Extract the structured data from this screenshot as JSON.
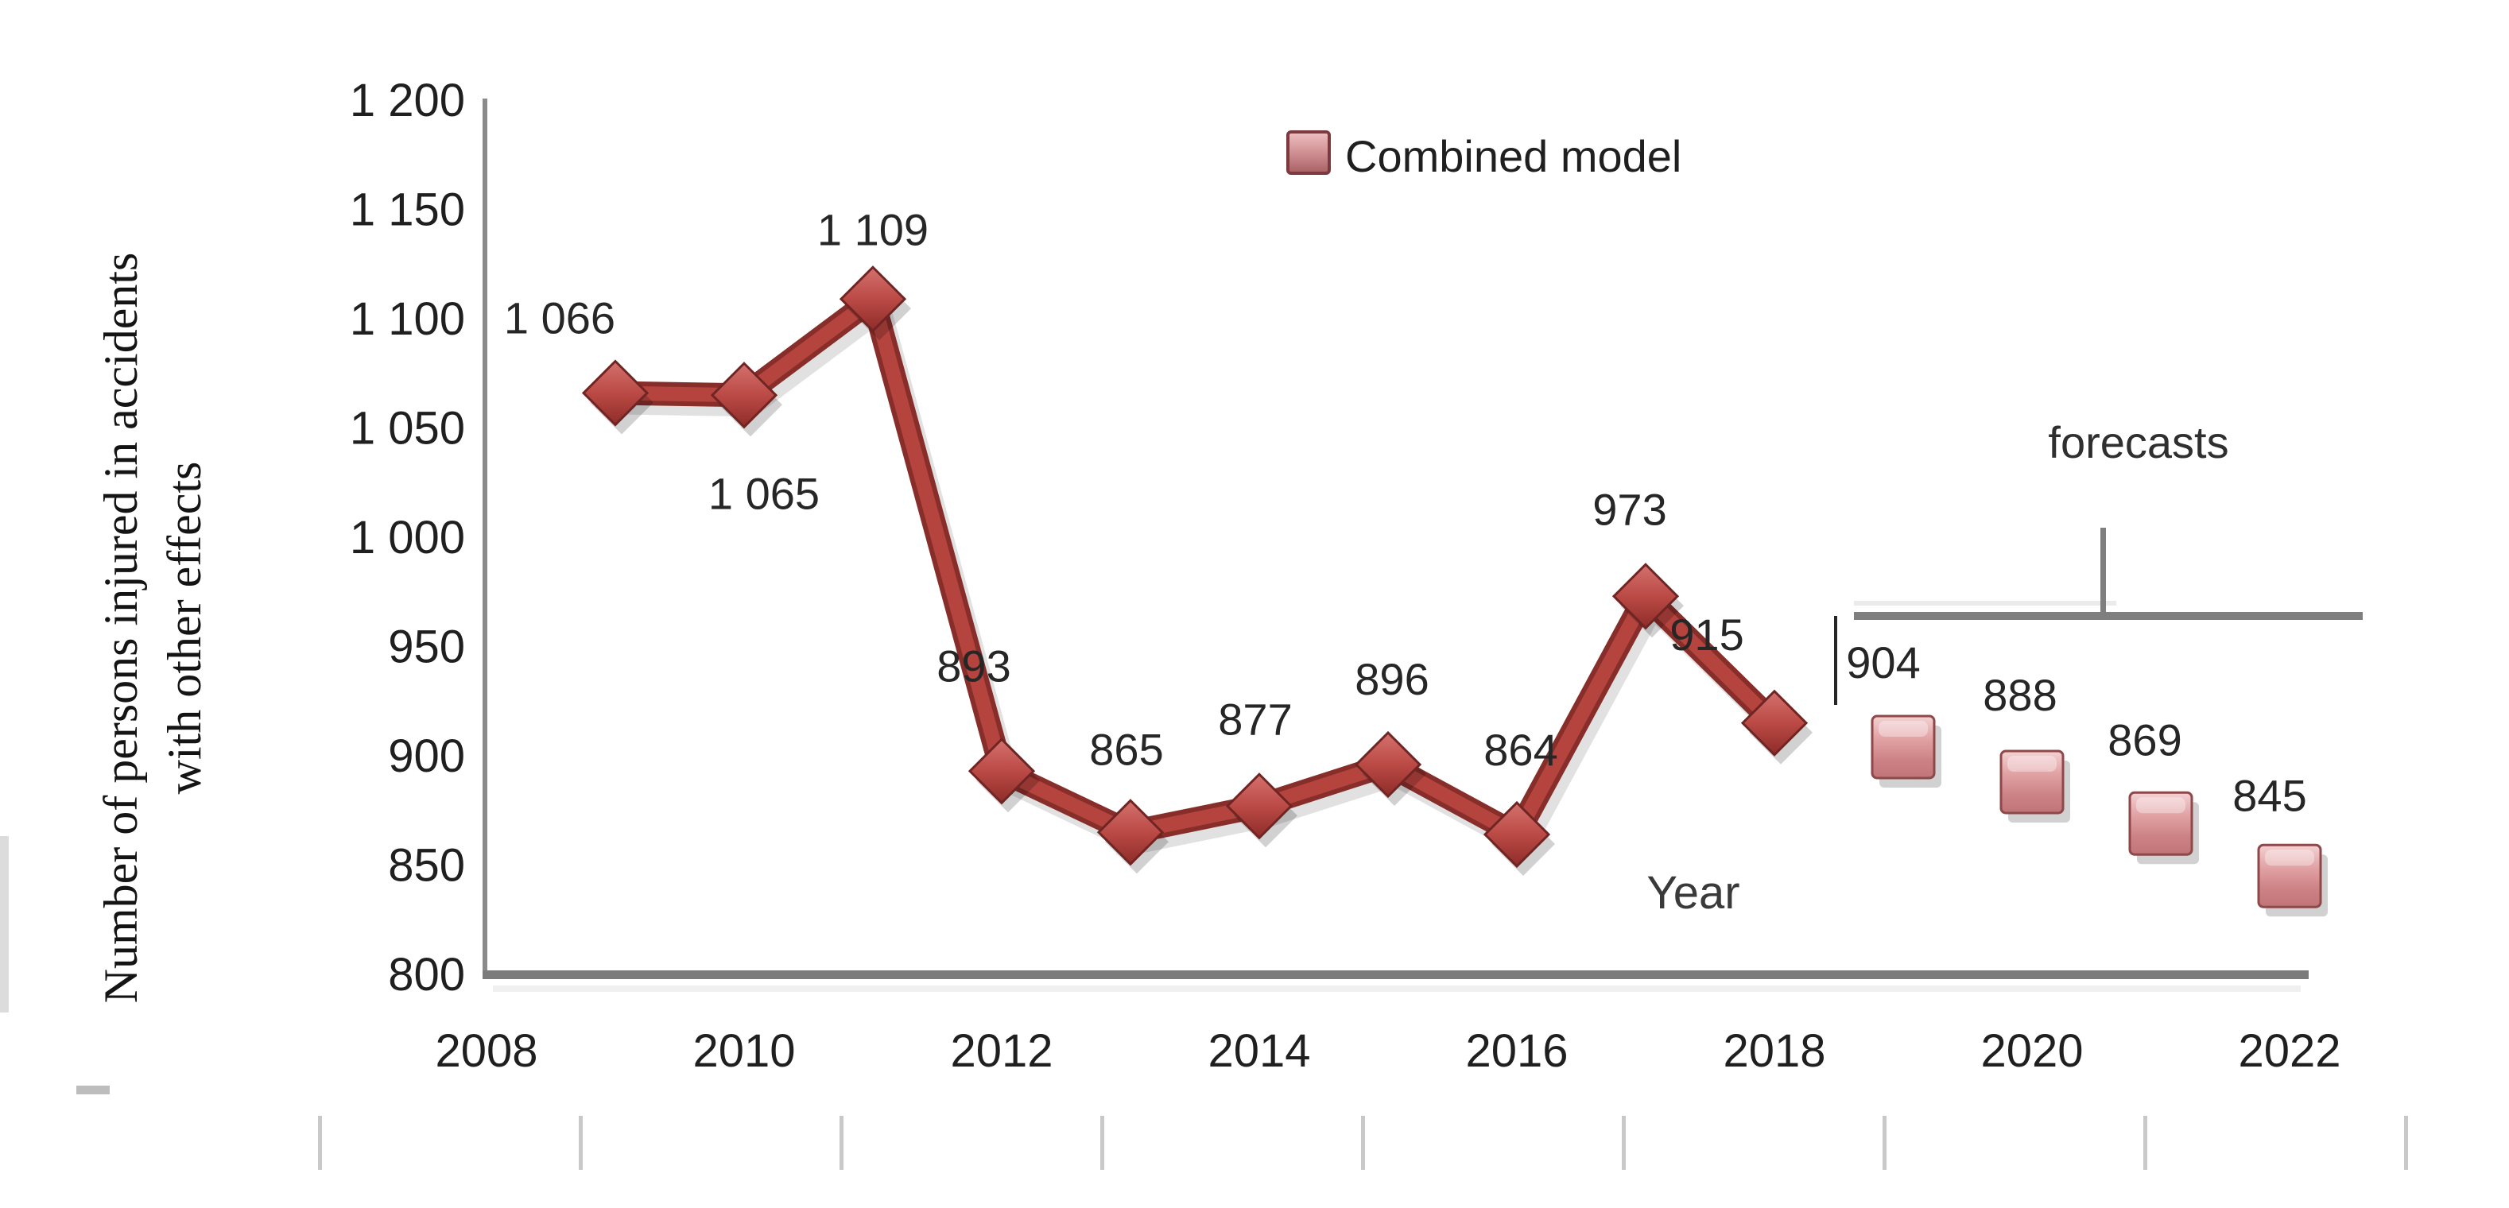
{
  "page": {
    "background": "#ffffff"
  },
  "chart_data": {
    "type": "line",
    "title": "",
    "legend_label": "Combined model",
    "legend_position": "top-center",
    "grid": false,
    "x_axis": {
      "label": "Year",
      "ticks": [
        "2008",
        "2010",
        "2012",
        "2014",
        "2016",
        "2018",
        "2020",
        "2022"
      ],
      "range": [
        2008,
        2022
      ]
    },
    "y_axis": {
      "title_line1": "Number of persons injured in accidents",
      "title_line2": "with other effects",
      "range": [
        800,
        1200
      ],
      "ticks": [
        {
          "value": 1200,
          "label": "1 200"
        },
        {
          "value": 1150,
          "label": "1 150"
        },
        {
          "value": 1100,
          "label": "1 100"
        },
        {
          "value": 1050,
          "label": "1 050"
        },
        {
          "value": 1000,
          "label": "1 000"
        },
        {
          "value": 950,
          "label": "950"
        },
        {
          "value": 900,
          "label": "900"
        },
        {
          "value": 850,
          "label": "850"
        },
        {
          "value": 800,
          "label": "800"
        }
      ]
    },
    "annotations": {
      "forecasts_label": "forecasts"
    },
    "series": [
      {
        "name": "Combined model",
        "marker": "diamond",
        "color": "#b5443f",
        "points": [
          {
            "x": 2009,
            "y": 1066,
            "label": "1 066",
            "label_dx": -70,
            "label_dy": -95
          },
          {
            "x": 2010,
            "y": 1065,
            "label": "1 065",
            "label_dx": 25,
            "label_dy": 123
          },
          {
            "x": 2011,
            "y": 1109,
            "label": "1 109",
            "label_dx": 0,
            "label_dy": -88
          },
          {
            "x": 2012,
            "y": 893,
            "label": "893",
            "label_dx": -35,
            "label_dy": -133
          },
          {
            "x": 2013,
            "y": 865,
            "label": "865",
            "label_dx": -5,
            "label_dy": -105
          },
          {
            "x": 2014,
            "y": 877,
            "label": "877",
            "label_dx": -5,
            "label_dy": -110
          },
          {
            "x": 2015,
            "y": 896,
            "label": "896",
            "label_dx": 5,
            "label_dy": -108
          },
          {
            "x": 2016,
            "y": 864,
            "label": "864",
            "label_dx": 5,
            "label_dy": -107
          },
          {
            "x": 2017,
            "y": 973,
            "label": "973",
            "label_dx": -20,
            "label_dy": -110
          },
          {
            "x": 2018,
            "y": 915,
            "label": "915",
            "label_dx": -85,
            "label_dy": -112
          }
        ]
      },
      {
        "name": "forecasts",
        "marker": "square",
        "color": "#d28f92",
        "points": [
          {
            "x": 2019,
            "y": 904,
            "label": "904",
            "label_dx": -25,
            "label_dy": -107
          },
          {
            "x": 2020,
            "y": 888,
            "label": "888",
            "label_dx": -15,
            "label_dy": -110
          },
          {
            "x": 2021,
            "y": 869,
            "label": "869",
            "label_dx": -20,
            "label_dy": -106
          },
          {
            "x": 2022,
            "y": 845,
            "label": "845",
            "label_dx": -25,
            "label_dy": -102
          }
        ]
      }
    ],
    "colors": {
      "line": "#b5443f",
      "line_edge": "#872e2a",
      "marker_top": "#d4716d",
      "marker_bottom": "#93302d",
      "square_top": "#f4d2d3",
      "square_mid": "#e2a4a6",
      "square_bottom": "#c07477",
      "axis": "#8a8a8a",
      "bracket": "#7f7f7f",
      "text": "#1f1f1f"
    }
  }
}
